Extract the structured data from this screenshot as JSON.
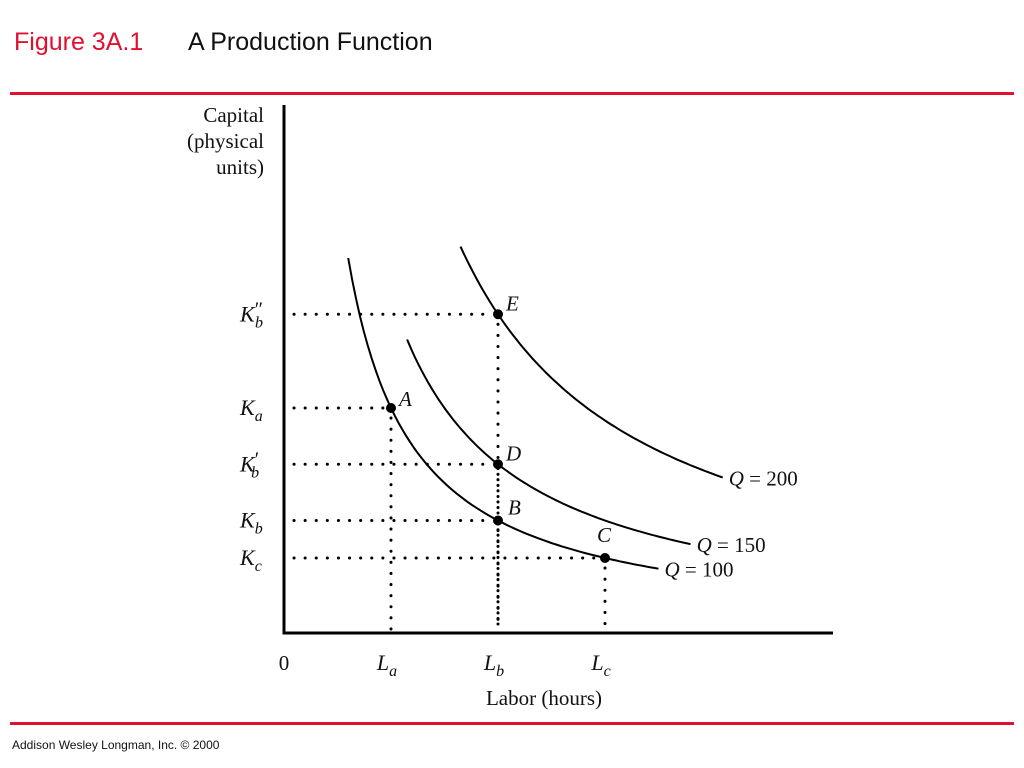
{
  "header": {
    "figure_label": "Figure 3A.1",
    "title": "A Production Function",
    "accent_color": "#e0102f"
  },
  "footer": {
    "text": "Addison Wesley Longman, Inc.  © 2000"
  },
  "chart_data": {
    "type": "line",
    "title": "A Production Function",
    "ylabel_lines": [
      "Capital",
      "(physical",
      "units)"
    ],
    "xlabel": "Labor (hours)",
    "origin_label": "0",
    "x_ticks": [
      {
        "base": "L",
        "sub": "a",
        "value": 1.0
      },
      {
        "base": "L",
        "sub": "b",
        "value": 2.0
      },
      {
        "base": "L",
        "sub": "c",
        "value": 3.0
      }
    ],
    "y_ticks": [
      {
        "base": "K",
        "sub": "c",
        "prime": "",
        "value": 1.0
      },
      {
        "base": "K",
        "sub": "b",
        "prime": "",
        "value": 1.5
      },
      {
        "base": "K",
        "sub": "b",
        "prime": "′",
        "value": 2.25
      },
      {
        "base": "K",
        "sub": "a",
        "prime": "",
        "value": 3.0
      },
      {
        "base": "K",
        "sub": "b",
        "prime": "″",
        "value": 4.25
      }
    ],
    "xlim": [
      0,
      4.5
    ],
    "ylim": [
      0,
      6.0
    ],
    "series": [
      {
        "name": "Q = 100",
        "q": "Q",
        "value_text": " = 100",
        "k": 3.0,
        "x_range": [
          0.6,
          3.5
        ]
      },
      {
        "name": "Q = 150",
        "q": "Q",
        "value_text": " = 150",
        "k": 4.5,
        "x_range": [
          1.15,
          3.8
        ]
      },
      {
        "name": "Q = 200",
        "q": "Q",
        "value_text": " = 200",
        "k": 8.5,
        "x_range": [
          1.65,
          4.1
        ]
      }
    ],
    "points": [
      {
        "label": "A",
        "x": 1.0,
        "y": 3.0
      },
      {
        "label": "B",
        "x": 2.0,
        "y": 1.5
      },
      {
        "label": "C",
        "x": 3.0,
        "y": 1.0
      },
      {
        "label": "D",
        "x": 2.0,
        "y": 2.25
      },
      {
        "label": "E",
        "x": 2.0,
        "y": 4.25
      }
    ],
    "grid": false
  }
}
